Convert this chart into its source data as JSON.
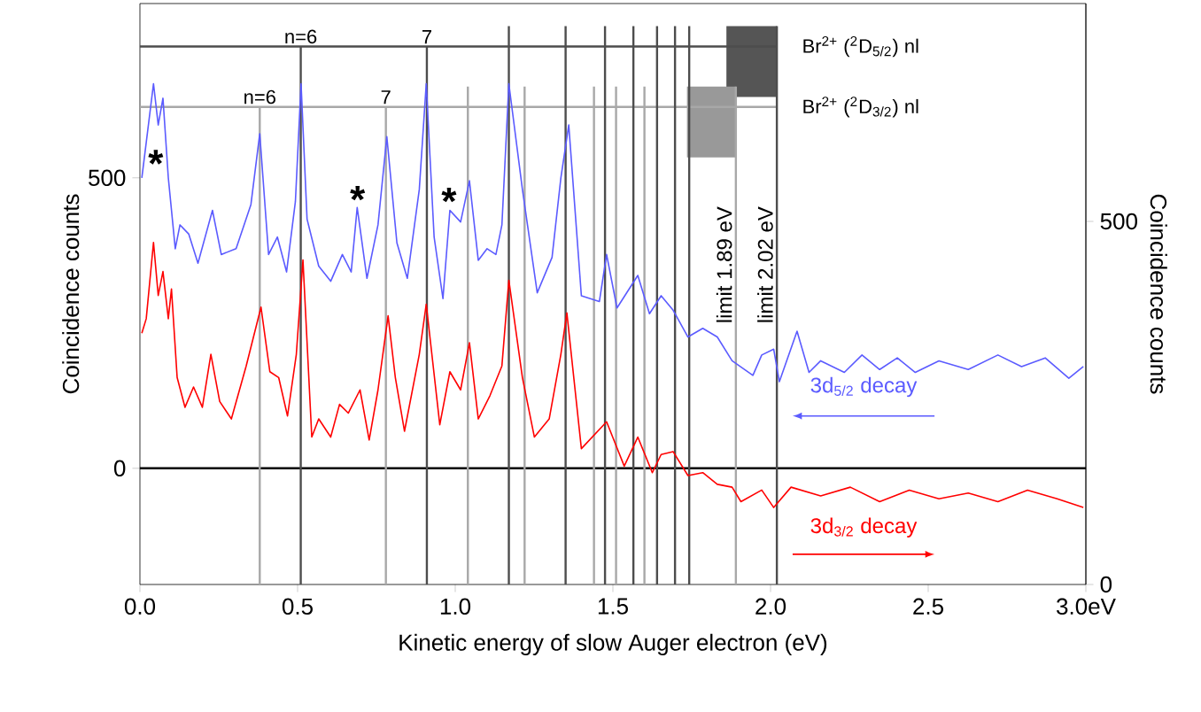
{
  "chart_data": {
    "type": "line",
    "xlabel": "Kinetic energy of slow Auger electron (eV)",
    "ylabel": "Coincidence counts",
    "y2label": "Coincidence counts",
    "xlim": [
      0,
      3
    ],
    "xticks": [
      {
        "value": 0,
        "label": "0.0"
      },
      {
        "value": 0.5,
        "label": "0.5"
      },
      {
        "value": 1,
        "label": "1.0"
      },
      {
        "value": 1.5,
        "label": "1.5"
      },
      {
        "value": 2,
        "label": "2.0"
      },
      {
        "value": 2.5,
        "label": "2.5"
      },
      {
        "value": 3,
        "label": "3.0eV"
      }
    ],
    "ylim": [
      -200,
      800
    ],
    "yticks": [
      0,
      500
    ],
    "y2lim": [
      0,
      800
    ],
    "y2ticks": [
      0,
      500
    ],
    "series": [
      {
        "name": "3d$_{5/2}$ decay",
        "color": "#5b5bff",
        "axis": "y",
        "x": [
          0.006,
          0.02,
          0.043,
          0.058,
          0.073,
          0.09,
          0.112,
          0.127,
          0.155,
          0.184,
          0.23,
          0.258,
          0.305,
          0.352,
          0.38,
          0.408,
          0.436,
          0.465,
          0.493,
          0.511,
          0.53,
          0.567,
          0.605,
          0.642,
          0.67,
          0.689,
          0.72,
          0.755,
          0.783,
          0.815,
          0.848,
          0.886,
          0.908,
          0.933,
          0.961,
          0.983,
          1.017,
          1.045,
          1.073,
          1.101,
          1.129,
          1.148,
          1.17,
          1.213,
          1.26,
          1.307,
          1.335,
          1.36,
          1.4,
          1.457,
          1.48,
          1.513,
          1.579,
          1.616,
          1.653,
          1.691,
          1.738,
          1.785,
          1.831,
          1.878,
          1.944,
          1.972,
          2.01,
          2.028,
          2.084,
          2.122,
          2.159,
          2.234,
          2.29,
          2.346,
          2.402,
          2.459,
          2.534,
          2.627,
          2.721,
          2.796,
          2.871,
          2.946,
          2.992
        ],
        "values": [
          500,
          561,
          662,
          591,
          637,
          500,
          378,
          419,
          403,
          353,
          444,
          368,
          378,
          454,
          576,
          368,
          398,
          338,
          459,
          662,
          429,
          348,
          322,
          368,
          338,
          449,
          327,
          419,
          571,
          388,
          327,
          480,
          662,
          398,
          292,
          444,
          424,
          495,
          358,
          378,
          368,
          419,
          662,
          480,
          302,
          363,
          500,
          591,
          297,
          287,
          368,
          276,
          332,
          266,
          297,
          272,
          226,
          241,
          226,
          185,
          160,
          195,
          205,
          149,
          236,
          165,
          185,
          165,
          195,
          170,
          190,
          165,
          185,
          170,
          195,
          175,
          190,
          155,
          175
        ]
      },
      {
        "name": "3d$_{3/2}$ decay",
        "color": "#ff0000",
        "axis": "y2",
        "x": [
          0.006,
          0.02,
          0.043,
          0.058,
          0.073,
          0.09,
          0.1,
          0.118,
          0.143,
          0.17,
          0.198,
          0.225,
          0.253,
          0.29,
          0.337,
          0.384,
          0.412,
          0.44,
          0.468,
          0.496,
          0.517,
          0.545,
          0.567,
          0.605,
          0.633,
          0.661,
          0.698,
          0.727,
          0.755,
          0.787,
          0.81,
          0.839,
          0.886,
          0.908,
          0.951,
          0.983,
          1.017,
          1.045,
          1.073,
          1.11,
          1.148,
          1.17,
          1.213,
          1.251,
          1.298,
          1.335,
          1.354,
          1.4,
          1.48,
          1.536,
          1.579,
          1.625,
          1.653,
          1.691,
          1.738,
          1.785,
          1.831,
          1.878,
          1.906,
          1.972,
          2.01,
          2.065,
          2.159,
          2.253,
          2.346,
          2.44,
          2.534,
          2.627,
          2.721,
          2.815,
          2.909,
          2.992
        ],
        "values": [
          346,
          366,
          471,
          398,
          431,
          366,
          407,
          285,
          244,
          272,
          244,
          317,
          252,
          228,
          301,
          382,
          293,
          285,
          232,
          317,
          447,
          203,
          228,
          203,
          248,
          236,
          268,
          199,
          268,
          370,
          285,
          211,
          317,
          386,
          220,
          293,
          268,
          333,
          228,
          260,
          301,
          419,
          285,
          203,
          228,
          317,
          374,
          187,
          224,
          163,
          203,
          154,
          179,
          183,
          150,
          154,
          138,
          134,
          114,
          130,
          106,
          134,
          122,
          134,
          114,
          130,
          118,
          126,
          114,
          130,
          118,
          106
        ]
      }
    ],
    "ref_lines": [
      {
        "axis": "y",
        "value": 0,
        "color": "#000000"
      },
      {
        "axis": "y",
        "value": 726,
        "color": "#4d4d4d",
        "label": "Br$^{2+}$ ($^{2}$D$_{5/2}$) nl"
      },
      {
        "axis": "y",
        "value": 622,
        "color": "#a8a8a8",
        "label": "Br$^{2+}$ ($^{2}$D$_{3/2}$) nl"
      },
      {
        "axis": "x",
        "value": 0.51,
        "color": "#4d4d4d"
      },
      {
        "axis": "x",
        "value": 0.91,
        "color": "#4d4d4d"
      },
      {
        "axis": "x",
        "value": 1.17,
        "color": "#4d4d4d"
      },
      {
        "axis": "x",
        "value": 1.35,
        "color": "#4d4d4d"
      },
      {
        "axis": "x",
        "value": 1.475,
        "color": "#4d4d4d"
      },
      {
        "axis": "x",
        "value": 1.565,
        "color": "#4d4d4d"
      },
      {
        "axis": "x",
        "value": 1.64,
        "color": "#4d4d4d"
      },
      {
        "axis": "x",
        "value": 1.697,
        "color": "#4d4d4d"
      },
      {
        "axis": "x",
        "value": 1.742,
        "color": "#4d4d4d"
      },
      {
        "axis": "x",
        "value": 2.02,
        "color": "#4d4d4d",
        "label": "limit 2.02 eV"
      },
      {
        "axis": "x",
        "value": 0.38,
        "color": "#a8a8a8"
      },
      {
        "axis": "x",
        "value": 0.78,
        "color": "#a8a8a8"
      },
      {
        "axis": "x",
        "value": 1.04,
        "color": "#a8a8a8"
      },
      {
        "axis": "x",
        "value": 1.22,
        "color": "#a8a8a8"
      },
      {
        "axis": "x",
        "value": 1.44,
        "color": "#a8a8a8"
      },
      {
        "axis": "x",
        "value": 1.51,
        "color": "#a8a8a8"
      },
      {
        "axis": "x",
        "value": 1.6,
        "color": "#a8a8a8"
      },
      {
        "axis": "x",
        "value": 1.89,
        "color": "#a8a8a8",
        "label": "limit 1.89 eV"
      }
    ],
    "bands": [
      {
        "axis": "x",
        "from": 1.86,
        "to": 2.02,
        "color": "#555555"
      },
      {
        "axis": "x",
        "from": 1.735,
        "to": 1.89,
        "color": "#999999"
      }
    ],
    "annotations": [
      "*",
      "*",
      "*",
      {
        "text": "n=6",
        "x": 0.51,
        "y": 726
      },
      {
        "text": "7",
        "x": 0.91,
        "y": 726
      },
      {
        "text": "n=6",
        "x": 0.38,
        "y": 622
      },
      {
        "text": "7",
        "x": 0.78,
        "y": 622
      }
    ]
  }
}
